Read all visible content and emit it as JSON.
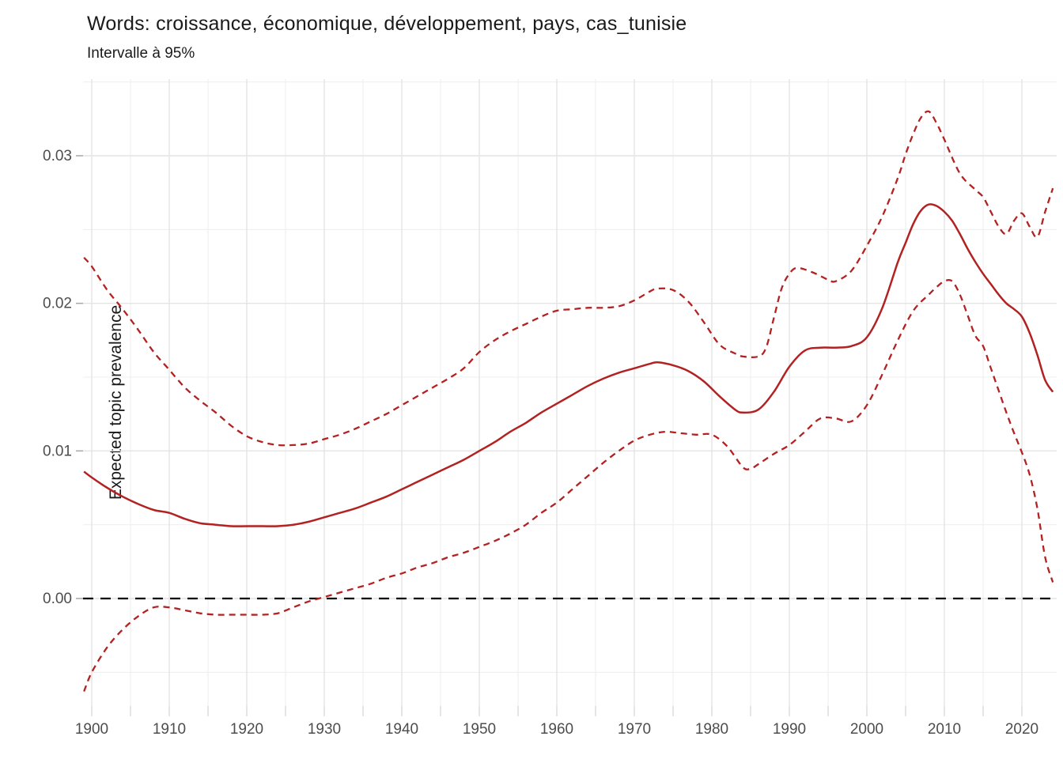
{
  "chart_data": {
    "type": "line",
    "title": "Words: croissance, économique, développement, pays, cas_tunisie",
    "subtitle": "Intervalle à 95%",
    "xlabel": "",
    "ylabel": "Expected topic prevalence",
    "legend_position": "none",
    "grid": true,
    "xlim": [
      1899,
      2024
    ],
    "ylim": [
      -0.0073,
      0.0352
    ],
    "x_tick_labels": [
      "1900",
      "1910",
      "1920",
      "1930",
      "1940",
      "1950",
      "1960",
      "1970",
      "1980",
      "1990",
      "2000",
      "2010",
      "2020"
    ],
    "x_tick_values": [
      1900,
      1910,
      1920,
      1930,
      1940,
      1950,
      1960,
      1970,
      1980,
      1990,
      2000,
      2010,
      2020
    ],
    "x_minor_tick_values": [
      1905,
      1915,
      1925,
      1935,
      1945,
      1955,
      1965,
      1975,
      1985,
      1995,
      2005,
      2015
    ],
    "y_tick_labels": [
      "0.00",
      "0.01",
      "0.02",
      "0.03"
    ],
    "y_tick_values": [
      0,
      0.01,
      0.02,
      0.03
    ],
    "y_minor_gridline_values": [
      -0.005,
      0.005,
      0.015,
      0.025,
      0.035
    ],
    "zero_line": {
      "value": 0,
      "style": "dashed",
      "color": "#000000"
    },
    "colors": {
      "series": "#B22222",
      "grid_major": "#E4E4E4",
      "grid_minor": "#EFEFEF",
      "axis_text": "#4D4D4D",
      "title_text": "#1A1A1A",
      "x_tick": "#DCDCDC",
      "y_tick": "#A6A6A6"
    },
    "series": [
      {
        "name": "expected_prevalence_estimate",
        "style": "solid",
        "points": [
          [
            1899,
            0.0086
          ],
          [
            1900,
            0.0082
          ],
          [
            1902,
            0.0075
          ],
          [
            1904,
            0.0069
          ],
          [
            1906,
            0.0064
          ],
          [
            1908,
            0.006
          ],
          [
            1910,
            0.0058
          ],
          [
            1912,
            0.0054
          ],
          [
            1914,
            0.0051
          ],
          [
            1916,
            0.005
          ],
          [
            1918,
            0.0049
          ],
          [
            1920,
            0.0049
          ],
          [
            1922,
            0.0049
          ],
          [
            1924,
            0.0049
          ],
          [
            1926,
            0.005
          ],
          [
            1928,
            0.0052
          ],
          [
            1930,
            0.0055
          ],
          [
            1932,
            0.0058
          ],
          [
            1934,
            0.0061
          ],
          [
            1936,
            0.0065
          ],
          [
            1938,
            0.0069
          ],
          [
            1940,
            0.0074
          ],
          [
            1942,
            0.0079
          ],
          [
            1944,
            0.0084
          ],
          [
            1946,
            0.0089
          ],
          [
            1948,
            0.0094
          ],
          [
            1950,
            0.01
          ],
          [
            1952,
            0.0106
          ],
          [
            1954,
            0.0113
          ],
          [
            1956,
            0.0119
          ],
          [
            1958,
            0.0126
          ],
          [
            1960,
            0.0132
          ],
          [
            1962,
            0.0138
          ],
          [
            1964,
            0.0144
          ],
          [
            1966,
            0.0149
          ],
          [
            1968,
            0.0153
          ],
          [
            1970,
            0.0156
          ],
          [
            1972,
            0.0159
          ],
          [
            1973,
            0.016
          ],
          [
            1975,
            0.0158
          ],
          [
            1977,
            0.0154
          ],
          [
            1979,
            0.0147
          ],
          [
            1981,
            0.0137
          ],
          [
            1983,
            0.0128
          ],
          [
            1984,
            0.0126
          ],
          [
            1986,
            0.0128
          ],
          [
            1988,
            0.014
          ],
          [
            1990,
            0.0157
          ],
          [
            1992,
            0.0168
          ],
          [
            1994,
            0.017
          ],
          [
            1996,
            0.017
          ],
          [
            1998,
            0.0171
          ],
          [
            2000,
            0.0177
          ],
          [
            2002,
            0.0197
          ],
          [
            2004,
            0.0228
          ],
          [
            2005,
            0.0241
          ],
          [
            2006,
            0.0254
          ],
          [
            2007,
            0.0263
          ],
          [
            2008,
            0.0267
          ],
          [
            2009,
            0.0266
          ],
          [
            2010,
            0.0262
          ],
          [
            2011,
            0.0256
          ],
          [
            2012,
            0.0247
          ],
          [
            2013,
            0.0237
          ],
          [
            2014,
            0.0228
          ],
          [
            2015,
            0.022
          ],
          [
            2016,
            0.0213
          ],
          [
            2017,
            0.0206
          ],
          [
            2018,
            0.02
          ],
          [
            2019,
            0.0196
          ],
          [
            2020,
            0.0191
          ],
          [
            2021,
            0.018
          ],
          [
            2022,
            0.0165
          ],
          [
            2023,
            0.0148
          ],
          [
            2024,
            0.014
          ]
        ]
      },
      {
        "name": "ci95_upper",
        "style": "dashed",
        "points": [
          [
            1899,
            0.0231
          ],
          [
            1900,
            0.0225
          ],
          [
            1902,
            0.0209
          ],
          [
            1904,
            0.0196
          ],
          [
            1906,
            0.0182
          ],
          [
            1908,
            0.0167
          ],
          [
            1910,
            0.0155
          ],
          [
            1912,
            0.0143
          ],
          [
            1914,
            0.0134
          ],
          [
            1916,
            0.0126
          ],
          [
            1918,
            0.0117
          ],
          [
            1920,
            0.011
          ],
          [
            1922,
            0.0106
          ],
          [
            1924,
            0.0104
          ],
          [
            1926,
            0.0104
          ],
          [
            1928,
            0.0105
          ],
          [
            1930,
            0.0108
          ],
          [
            1932,
            0.0111
          ],
          [
            1934,
            0.0115
          ],
          [
            1936,
            0.012
          ],
          [
            1938,
            0.0125
          ],
          [
            1940,
            0.0131
          ],
          [
            1942,
            0.0137
          ],
          [
            1944,
            0.0143
          ],
          [
            1946,
            0.0149
          ],
          [
            1948,
            0.0156
          ],
          [
            1950,
            0.0167
          ],
          [
            1952,
            0.0175
          ],
          [
            1954,
            0.0181
          ],
          [
            1956,
            0.0186
          ],
          [
            1958,
            0.0191
          ],
          [
            1960,
            0.0195
          ],
          [
            1962,
            0.0196
          ],
          [
            1964,
            0.0197
          ],
          [
            1966,
            0.0197
          ],
          [
            1968,
            0.0198
          ],
          [
            1970,
            0.0202
          ],
          [
            1972,
            0.0208
          ],
          [
            1973,
            0.021
          ],
          [
            1975,
            0.0209
          ],
          [
            1977,
            0.0201
          ],
          [
            1979,
            0.0187
          ],
          [
            1981,
            0.0172
          ],
          [
            1983,
            0.0166
          ],
          [
            1984,
            0.0164
          ],
          [
            1986,
            0.0164
          ],
          [
            1987,
            0.017
          ],
          [
            1988,
            0.019
          ],
          [
            1989,
            0.021
          ],
          [
            1990,
            0.022
          ],
          [
            1991,
            0.0224
          ],
          [
            1993,
            0.0221
          ],
          [
            1995,
            0.0216
          ],
          [
            1996,
            0.0215
          ],
          [
            1998,
            0.0222
          ],
          [
            2000,
            0.0239
          ],
          [
            2002,
            0.0259
          ],
          [
            2004,
            0.0285
          ],
          [
            2005,
            0.0301
          ],
          [
            2006,
            0.0315
          ],
          [
            2007,
            0.0326
          ],
          [
            2008,
            0.033
          ],
          [
            2009,
            0.0322
          ],
          [
            2010,
            0.0311
          ],
          [
            2012,
            0.0288
          ],
          [
            2014,
            0.0277
          ],
          [
            2015,
            0.0272
          ],
          [
            2016,
            0.0262
          ],
          [
            2017,
            0.0252
          ],
          [
            2018,
            0.0247
          ],
          [
            2019,
            0.0256
          ],
          [
            2020,
            0.0261
          ],
          [
            2021,
            0.0252
          ],
          [
            2022,
            0.0245
          ],
          [
            2023,
            0.0262
          ],
          [
            2024,
            0.0278
          ]
        ]
      },
      {
        "name": "ci95_lower",
        "style": "dashed",
        "points": [
          [
            1899,
            -0.0063
          ],
          [
            1900,
            -0.005
          ],
          [
            1902,
            -0.0033
          ],
          [
            1904,
            -0.0021
          ],
          [
            1906,
            -0.0012
          ],
          [
            1908,
            -0.0006
          ],
          [
            1910,
            -0.0006
          ],
          [
            1912,
            -0.0008
          ],
          [
            1914,
            -0.001
          ],
          [
            1916,
            -0.0011
          ],
          [
            1918,
            -0.0011
          ],
          [
            1920,
            -0.0011
          ],
          [
            1922,
            -0.0011
          ],
          [
            1924,
            -0.001
          ],
          [
            1926,
            -0.0006
          ],
          [
            1928,
            -0.0002
          ],
          [
            1930,
            0.0001
          ],
          [
            1932,
            0.0004
          ],
          [
            1934,
            0.0007
          ],
          [
            1936,
            0.001
          ],
          [
            1938,
            0.0014
          ],
          [
            1940,
            0.0017
          ],
          [
            1942,
            0.0021
          ],
          [
            1944,
            0.0024
          ],
          [
            1946,
            0.0028
          ],
          [
            1948,
            0.0031
          ],
          [
            1950,
            0.0035
          ],
          [
            1952,
            0.0039
          ],
          [
            1954,
            0.0044
          ],
          [
            1956,
            0.005
          ],
          [
            1958,
            0.0058
          ],
          [
            1960,
            0.0065
          ],
          [
            1962,
            0.0074
          ],
          [
            1964,
            0.0083
          ],
          [
            1966,
            0.0092
          ],
          [
            1968,
            0.01
          ],
          [
            1970,
            0.0107
          ],
          [
            1972,
            0.0111
          ],
          [
            1974,
            0.0113
          ],
          [
            1976,
            0.0112
          ],
          [
            1978,
            0.0111
          ],
          [
            1980,
            0.0111
          ],
          [
            1982,
            0.0103
          ],
          [
            1984,
            0.0089
          ],
          [
            1985,
            0.0088
          ],
          [
            1986,
            0.0091
          ],
          [
            1988,
            0.0098
          ],
          [
            1990,
            0.0104
          ],
          [
            1992,
            0.0113
          ],
          [
            1994,
            0.0122
          ],
          [
            1996,
            0.0122
          ],
          [
            1998,
            0.012
          ],
          [
            2000,
            0.0131
          ],
          [
            2002,
            0.0152
          ],
          [
            2004,
            0.0175
          ],
          [
            2006,
            0.0195
          ],
          [
            2008,
            0.0206
          ],
          [
            2009,
            0.0211
          ],
          [
            2010,
            0.0215
          ],
          [
            2011,
            0.0215
          ],
          [
            2012,
            0.0206
          ],
          [
            2013,
            0.0192
          ],
          [
            2014,
            0.0178
          ],
          [
            2015,
            0.0171
          ],
          [
            2016,
            0.0156
          ],
          [
            2017,
            0.0141
          ],
          [
            2018,
            0.0126
          ],
          [
            2019,
            0.0112
          ],
          [
            2020,
            0.0099
          ],
          [
            2021,
            0.0084
          ],
          [
            2022,
            0.0061
          ],
          [
            2023,
            0.0028
          ],
          [
            2024,
            0.0011
          ]
        ]
      }
    ]
  }
}
